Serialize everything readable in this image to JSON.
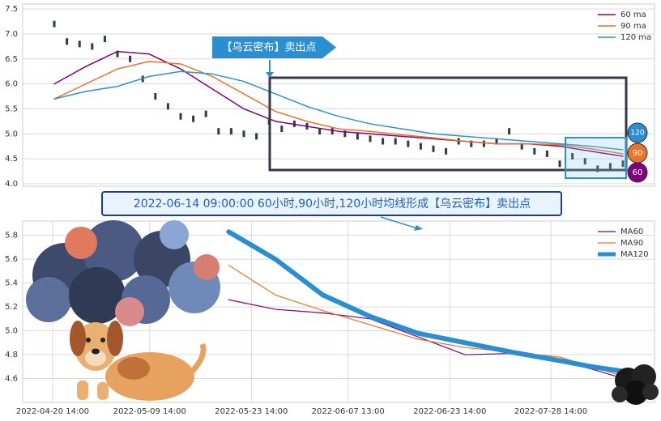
{
  "chart_data": [
    {
      "type": "line",
      "annotation": "【乌云密布】卖出点",
      "end_labels": [
        "120",
        "90",
        "60"
      ],
      "xlim": [
        0,
        100
      ],
      "ylim": [
        3.95,
        7.6
      ],
      "yticks": [
        {
          "value": 4,
          "label": "4.0"
        },
        4.5,
        {
          "value": 5,
          "label": "5.0"
        },
        5.5,
        {
          "value": 6,
          "label": "6.0"
        },
        6.5,
        {
          "value": 7,
          "label": "7.0"
        },
        7.5
      ],
      "grid": true,
      "legend": "upper right",
      "series": [
        {
          "style": "candle",
          "color": "#2d3a4a",
          "x": [
            5,
            7,
            9,
            11,
            13,
            15,
            17,
            19,
            21,
            23,
            25,
            27,
            29,
            31,
            33,
            35,
            37,
            39,
            41,
            43,
            45,
            47,
            49,
            51,
            53,
            55,
            57,
            59,
            61,
            63,
            65,
            67,
            69,
            71,
            73,
            75,
            77,
            79,
            81,
            83,
            85,
            87,
            89,
            91,
            93,
            95
          ],
          "values": [
            7.2,
            6.85,
            6.8,
            6.75,
            6.9,
            6.6,
            6.5,
            6.1,
            5.75,
            5.55,
            5.35,
            5.3,
            5.4,
            5.05,
            5.05,
            5.0,
            4.95,
            5.25,
            5.1,
            5.2,
            5.15,
            5.05,
            5.05,
            5.0,
            4.95,
            4.9,
            4.85,
            4.85,
            4.8,
            4.75,
            4.7,
            4.65,
            4.85,
            4.8,
            4.8,
            4.85,
            5.05,
            4.75,
            4.65,
            4.6,
            4.4,
            4.55,
            4.45,
            4.3,
            4.35,
            4.4
          ]
        },
        {
          "name": "60 ma",
          "color": "#800080",
          "x": [
            5,
            10,
            15,
            20,
            25,
            30,
            35,
            40,
            45,
            50,
            55,
            60,
            65,
            70,
            75,
            80,
            85,
            90,
            95
          ],
          "values": [
            6.0,
            6.35,
            6.65,
            6.6,
            6.3,
            5.9,
            5.5,
            5.25,
            5.15,
            5.05,
            5.0,
            4.95,
            4.9,
            4.85,
            4.8,
            4.8,
            4.75,
            4.65,
            4.55
          ]
        },
        {
          "name": "90 ma",
          "color": "#e8742a",
          "x": [
            5,
            10,
            15,
            20,
            25,
            30,
            35,
            40,
            45,
            50,
            55,
            60,
            65,
            70,
            75,
            80,
            85,
            90,
            95
          ],
          "values": [
            5.7,
            6.0,
            6.3,
            6.45,
            6.4,
            6.15,
            5.8,
            5.45,
            5.25,
            5.1,
            5.05,
            4.98,
            4.92,
            4.85,
            4.8,
            4.8,
            4.78,
            4.7,
            4.6
          ]
        },
        {
          "name": "120 ma",
          "color": "#2a93c8",
          "x": [
            5,
            10,
            15,
            20,
            25,
            30,
            35,
            40,
            45,
            50,
            55,
            60,
            65,
            70,
            75,
            80,
            85,
            90,
            95
          ],
          "values": [
            5.7,
            5.85,
            5.95,
            6.15,
            6.25,
            6.2,
            6.05,
            5.8,
            5.55,
            5.35,
            5.2,
            5.1,
            5.0,
            4.95,
            4.9,
            4.85,
            4.8,
            4.75,
            4.68
          ]
        }
      ]
    },
    {
      "type": "line",
      "annotation": "2022-06-14 09:00:00 60小时,90小时,120小时均线形成【乌云密布】卖出点",
      "xlim": [
        0,
        100
      ],
      "ylim": [
        4.4,
        5.92
      ],
      "xticks": [
        {
          "value": 4.74,
          "label": "2022-04-20 14:00"
        },
        {
          "value": 20.1,
          "label": "2022-05-09 14:00"
        },
        {
          "value": 36.2,
          "label": "2022-05-23 14:00"
        },
        {
          "value": 51.5,
          "label": "2022-06-07 13:00"
        },
        {
          "value": 67.6,
          "label": "2022-06-23 14:00"
        },
        {
          "value": 83.6,
          "label": "2022-07-28 14:00"
        }
      ],
      "yticks": [
        4.6,
        4.8,
        {
          "value": 5,
          "label": "5.0"
        },
        5.2,
        5.4,
        5.6,
        5.8
      ],
      "grid": true,
      "legend": "upper right",
      "series": [
        {
          "name": "MA60",
          "color": "#800080",
          "x": [
            32.6,
            40,
            47.5,
            55,
            62.5,
            70,
            77.5,
            85,
            90,
            95.1
          ],
          "values": [
            5.26,
            5.18,
            5.15,
            5.1,
            4.95,
            4.8,
            4.81,
            4.75,
            4.68,
            4.6
          ]
        },
        {
          "name": "MA90",
          "color": "#e8742a",
          "x": [
            32.6,
            40,
            47.5,
            55,
            62.5,
            70,
            77.5,
            85,
            90,
            95.1
          ],
          "values": [
            5.55,
            5.3,
            5.17,
            5.05,
            4.93,
            4.86,
            4.82,
            4.78,
            4.7,
            4.62
          ]
        },
        {
          "name": "MA120",
          "color": "#2a8fd0",
          "x": [
            32.6,
            40,
            47.5,
            55,
            62.5,
            70,
            77.5,
            85,
            90,
            95.1
          ],
          "values": [
            5.83,
            5.6,
            5.3,
            5.12,
            4.98,
            4.9,
            4.82,
            4.75,
            4.7,
            4.66
          ]
        }
      ]
    }
  ]
}
